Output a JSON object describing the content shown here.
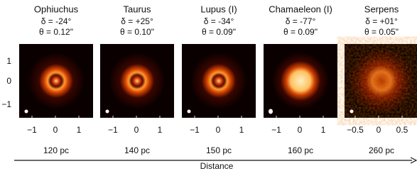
{
  "panels": [
    {
      "name": "Ophiuchus",
      "declination": "δ = -24°",
      "resolution": "θ = 0.12\"",
      "xticks": [
        "−1",
        "0",
        "1"
      ],
      "distance": "120 pc"
    },
    {
      "name": "Taurus",
      "declination": "δ = +25°",
      "resolution": "θ = 0.10\"",
      "xticks": [
        "−1",
        "0",
        "1"
      ],
      "distance": "140 pc"
    },
    {
      "name": "Lupus (I)",
      "declination": "δ = -34°",
      "resolution": "θ = 0.09\"",
      "xticks": [
        "−1",
        "0",
        "1"
      ],
      "distance": "150 pc"
    },
    {
      "name": "Chamaeleon (I)",
      "declination": "δ = -77°",
      "resolution": "θ = 0.09\"",
      "xticks": [
        "−1",
        "0",
        "1"
      ],
      "distance": "160 pc"
    },
    {
      "name": "Serpens",
      "declination": "δ = +01°",
      "resolution": "θ = 0.05\"",
      "xticks": [
        "−0.5",
        "0",
        "0.5"
      ],
      "distance": "260 pc"
    }
  ],
  "yticks": [
    "1",
    "0",
    "−1"
  ],
  "axis_label": "Distance"
}
